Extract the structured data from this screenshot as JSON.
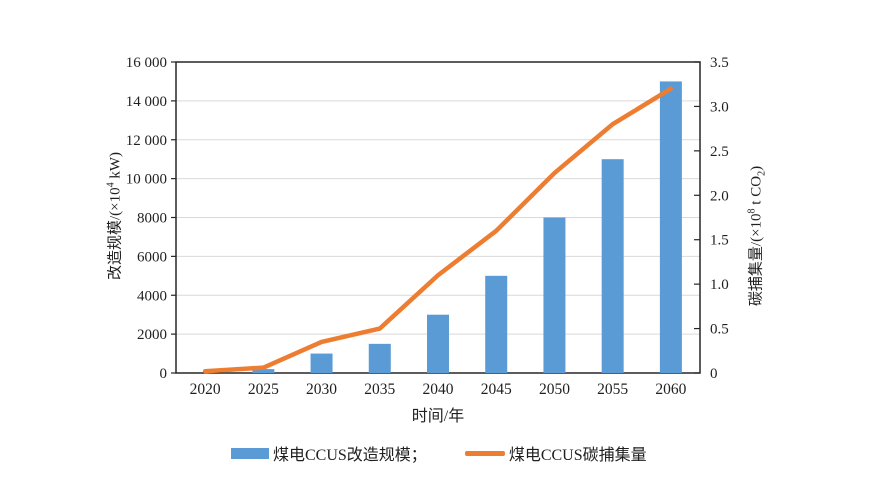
{
  "figure": {
    "background": "#ffffff",
    "plot_border_color": "#262626",
    "gridline_color": "#d9d9d9"
  },
  "chart_data": {
    "type": "bar+line",
    "categories": [
      "2020",
      "2025",
      "2030",
      "2035",
      "2040",
      "2045",
      "2050",
      "2055",
      "2060"
    ],
    "series": [
      {
        "name": "煤电CCUS改造规模",
        "type": "bar",
        "axis": "left",
        "unit": "×10⁴ kW",
        "color": "#5b9bd5",
        "values": [
          0,
          200,
          1000,
          1500,
          3000,
          5000,
          8000,
          11000,
          15000
        ]
      },
      {
        "name": "煤电CCUS碳捕集量",
        "type": "line",
        "axis": "right",
        "unit": "×10⁸ t CO₂",
        "color": "#ed7d31",
        "values": [
          0.02,
          0.06,
          0.35,
          0.5,
          1.1,
          1.6,
          2.25,
          2.8,
          3.2
        ]
      }
    ],
    "x_axis": {
      "label": "时间/年",
      "tick_labels": [
        "2020",
        "2025",
        "2030",
        "2035",
        "2040",
        "2045",
        "2050",
        "2055",
        "2060"
      ]
    },
    "left_axis": {
      "label": "改造规模/(×10⁴ kW)",
      "range": [
        0,
        16000
      ],
      "tick_interval": 2000,
      "tick_labels_top_to_bottom": [
        "16 000",
        "14 000",
        "12 000",
        "10 000",
        "8000",
        "6000",
        "4000",
        "2000",
        "0"
      ]
    },
    "right_axis": {
      "label": "碳捕集量/(×10⁸ t CO₂)",
      "range": [
        0,
        3.5
      ],
      "tick_interval": 0.5,
      "tick_labels_top_to_bottom": [
        "3.5",
        "3.0",
        "2.5",
        "2.0",
        "1.5",
        "1.0",
        "0.5",
        "0"
      ]
    },
    "grid": true,
    "legend_position": "bottom"
  },
  "axis_titles": {
    "left": {
      "prefix": "改造规模/(×10",
      "sup": "4",
      "suffix": " kW)"
    },
    "right": {
      "prefix": "碳捕集量/(×10",
      "sup": "8",
      "mid": " t CO",
      "sub": "2",
      "suffix": ")"
    },
    "x": "时间/年"
  },
  "legend": {
    "items": [
      {
        "label": "煤电CCUS改造规模；",
        "swatch": "bar",
        "color": "#5b9bd5"
      },
      {
        "label": "煤电CCUS碳捕集量",
        "swatch": "line",
        "color": "#ed7d31"
      }
    ]
  }
}
